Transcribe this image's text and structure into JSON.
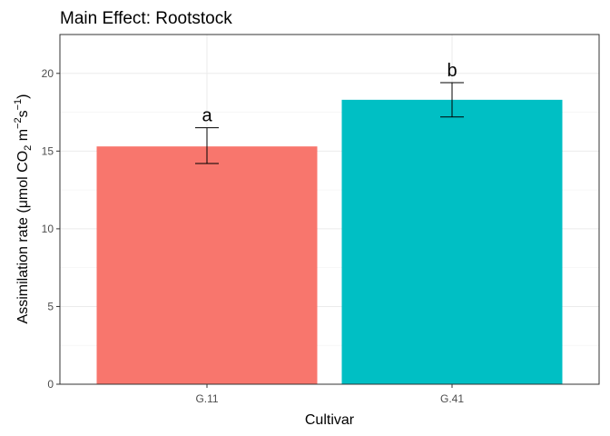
{
  "chart_data": {
    "type": "bar",
    "title": "Main Effect: Rootstock",
    "xlabel": "Cultivar",
    "ylabel": {
      "prefix": "Assimilation rate (μmol CO",
      "co2_sub": "2",
      "unit_m": " m",
      "m_exp": "−2",
      "unit_s": "s",
      "s_exp": "−1",
      "suffix": ")"
    },
    "categories": [
      "G.11",
      "G.41"
    ],
    "values": [
      15.3,
      18.3
    ],
    "error_low": [
      14.2,
      17.2
    ],
    "error_high": [
      16.5,
      19.4
    ],
    "significance_labels": [
      "a",
      "b"
    ],
    "colors": [
      "#F8766D",
      "#00BFC4"
    ],
    "ylim": [
      0,
      22.5
    ],
    "yticks": [
      0,
      5,
      10,
      15,
      20
    ],
    "grid": true,
    "legend": "none"
  }
}
